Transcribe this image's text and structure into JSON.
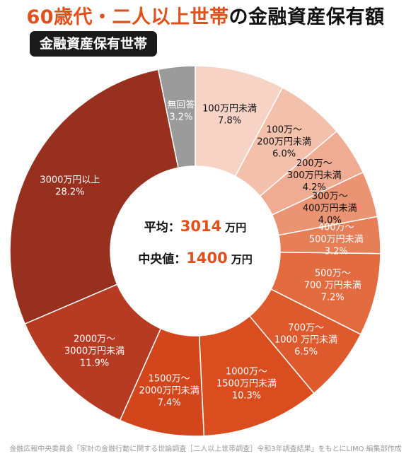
{
  "header": {
    "title_highlight": "60歳代・二人以上世帯",
    "title_rest": "の金融資産保有額",
    "badge": "金融資産保有世帯"
  },
  "center": {
    "avg_label": "平均：",
    "avg_value": "3014",
    "avg_unit": "万円",
    "median_label": "中央値：",
    "median_value": "1400",
    "median_unit": "万円",
    "value_color": "#e0501c"
  },
  "source": "金融広報中央委員会「家計の金融行動に関する世論調査［二人以上世帯調査］令和3年調査結果」をもとにLIMO 編集部作成",
  "chart_data": {
    "type": "pie",
    "title": "60歳代・二人以上世帯の金融資産保有額",
    "order": "clockwise from top",
    "slices": [
      {
        "label": [
          "100万円未満"
        ],
        "value": 7.8,
        "value_text": "7.8%",
        "color": "#f6d3c5",
        "text_color": "#111111"
      },
      {
        "label": [
          "100万～",
          "200万円未満"
        ],
        "value": 6.0,
        "value_text": "6.0%",
        "color": "#f3c0ab",
        "text_color": "#111111"
      },
      {
        "label": [
          "200万～",
          "300万円未満"
        ],
        "value": 4.2,
        "value_text": "4.2%",
        "color": "#efac92",
        "text_color": "#111111"
      },
      {
        "label": [
          "300万～",
          "400万円未満"
        ],
        "value": 4.0,
        "value_text": "4.0%",
        "color": "#ea9474",
        "text_color": "#111111"
      },
      {
        "label": [
          "400万～",
          "500万円未満"
        ],
        "value": 3.2,
        "value_text": "3.2%",
        "color": "#e67e57",
        "text_color": "#ffffff"
      },
      {
        "label": [
          "500万～",
          "700 万円未満"
        ],
        "value": 7.2,
        "value_text": "7.2%",
        "color": "#e26b40",
        "text_color": "#ffffff"
      },
      {
        "label": [
          "700万～",
          "1000 万円未満"
        ],
        "value": 6.5,
        "value_text": "6.5%",
        "color": "#de5a2c",
        "text_color": "#ffffff"
      },
      {
        "label": [
          "1000万～",
          "1500万円未満"
        ],
        "value": 10.3,
        "value_text": "10.3%",
        "color": "#d94d1f",
        "text_color": "#ffffff"
      },
      {
        "label": [
          "1500万～",
          "2000万円未満"
        ],
        "value": 7.4,
        "value_text": "7.4%",
        "color": "#d3461b",
        "text_color": "#ffffff"
      },
      {
        "label": [
          "2000万～",
          "3000万円未満"
        ],
        "value": 11.9,
        "value_text": "11.9%",
        "color": "#b73a22",
        "text_color": "#ffffff"
      },
      {
        "label": [
          "3000万円以上"
        ],
        "value": 28.2,
        "value_text": "28.2%",
        "color": "#97301f",
        "text_color": "#ffffff"
      },
      {
        "label": [
          "無回答"
        ],
        "value": 3.2,
        "value_text": "3.2%",
        "color": "#9b9b9b",
        "text_color": "#ffffff"
      }
    ]
  }
}
